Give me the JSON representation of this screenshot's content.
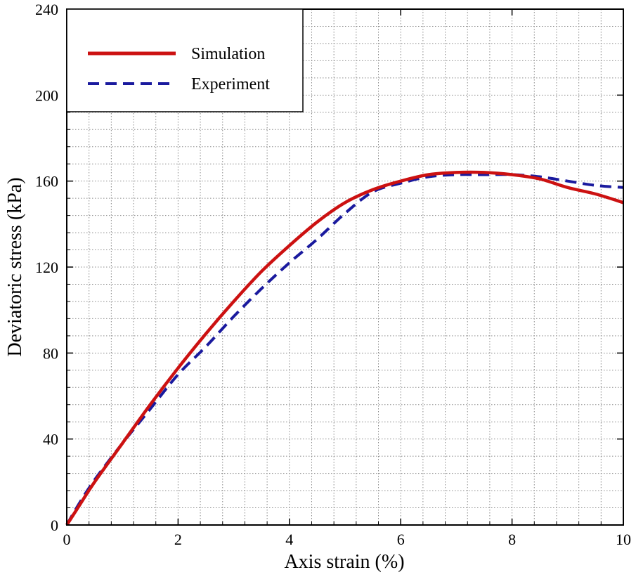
{
  "chart_data": {
    "type": "line",
    "xlabel": "Axis strain (%)",
    "ylabel": "Deviatoric stress (kPa)",
    "xlim": [
      0,
      10
    ],
    "ylim": [
      0,
      240
    ],
    "x_ticks": [
      0,
      2,
      4,
      6,
      8,
      10
    ],
    "x_tick_labels": [
      "0",
      "2",
      "4",
      "6",
      "8",
      "10"
    ],
    "y_ticks": [
      0,
      40,
      80,
      120,
      160,
      200,
      240
    ],
    "y_tick_labels": [
      "0",
      "40",
      "80",
      "120",
      "160",
      "200",
      "240"
    ],
    "x_grid_step": 0.4,
    "y_grid_step": 8,
    "grid": true,
    "legend_position": "top-left",
    "series": [
      {
        "name": "Simulation",
        "color": "#cc1111",
        "style": "solid",
        "x": [
          0,
          0.2,
          0.5,
          1.0,
          1.5,
          2.0,
          2.5,
          3.0,
          3.5,
          4.0,
          4.5,
          5.0,
          5.5,
          6.0,
          6.5,
          7.0,
          7.5,
          8.0,
          8.5,
          9.0,
          9.5,
          10.0
        ],
        "y": [
          0,
          8,
          20,
          38,
          56,
          73,
          89,
          104,
          118,
          130,
          141,
          150,
          156,
          160,
          163,
          164,
          164,
          163,
          161,
          157,
          154,
          150
        ]
      },
      {
        "name": "Experiment",
        "color": "#1a1a9e",
        "style": "dashed",
        "x": [
          0,
          0.2,
          0.5,
          1.0,
          1.5,
          2.0,
          2.5,
          3.0,
          3.5,
          4.0,
          4.5,
          5.0,
          5.5,
          6.0,
          6.5,
          7.0,
          7.5,
          8.0,
          8.5,
          9.0,
          9.5,
          10.0
        ],
        "y": [
          0,
          9,
          21,
          38,
          54,
          70,
          83,
          97,
          110,
          122,
          133,
          145,
          155,
          159,
          162,
          163,
          163,
          163,
          162,
          160,
          158,
          157
        ]
      }
    ]
  }
}
